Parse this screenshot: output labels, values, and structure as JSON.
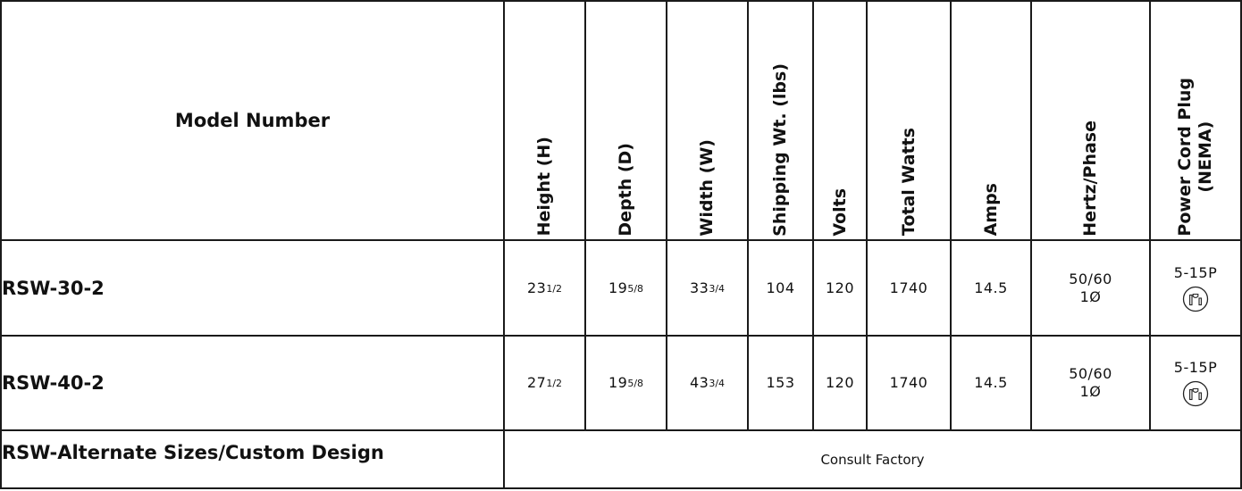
{
  "table": {
    "headers": {
      "model": "Model Number",
      "height": "Height (H)",
      "depth": "Depth (D)",
      "width": "Width (W)",
      "shipping": "Shipping Wt. (lbs)",
      "volts": "Volts",
      "watts": "Total Watts",
      "amps": "Amps",
      "hertz": "Hertz/Phase",
      "plug_line1": "Power Cord Plug",
      "plug_line2": "(NEMA)"
    },
    "rows": [
      {
        "model": "RSW-30-2",
        "height_whole": "23",
        "height_frac": "1/2",
        "depth_whole": "19",
        "depth_frac": "5/8",
        "width_whole": "33",
        "width_frac": "3/4",
        "shipping": "104",
        "volts": "120",
        "watts": "1740",
        "amps": "14.5",
        "hertz": "50/60",
        "phase": "1Ø",
        "plug": "5-15P",
        "plug_icon": "nema-5-15-plug-icon"
      },
      {
        "model": "RSW-40-2",
        "height_whole": "27",
        "height_frac": "1/2",
        "depth_whole": "19",
        "depth_frac": "5/8",
        "width_whole": "43",
        "width_frac": "3/4",
        "shipping": "153",
        "volts": "120",
        "watts": "1740",
        "amps": "14.5",
        "hertz": "50/60",
        "phase": "1Ø",
        "plug": "5-15P",
        "plug_icon": "nema-5-15-plug-icon"
      }
    ],
    "alternate": {
      "model": "RSW-Alternate Sizes/Custom Design",
      "note": "Consult Factory"
    }
  }
}
